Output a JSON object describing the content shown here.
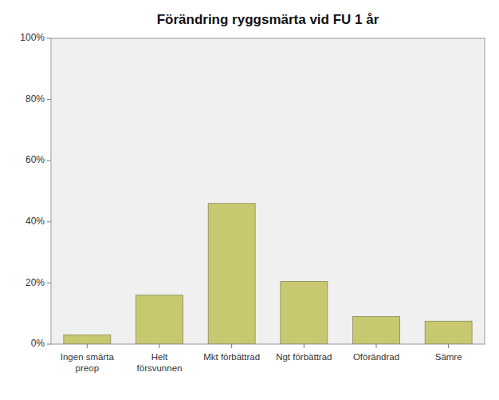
{
  "chart_data": {
    "type": "bar",
    "title": "Förändring ryggsmärta vid FU 1 år",
    "categories": [
      "Ingen smärta\npreop",
      "Helt\nförsvunnen",
      "Mkt förbättrad",
      "Ngt förbättrad",
      "Oförändrad",
      "Sämre"
    ],
    "values": [
      3.0,
      16.0,
      46.0,
      20.5,
      9.0,
      7.5
    ],
    "color": "#c8c870",
    "ylim": [
      0,
      100
    ],
    "yticks": [
      {
        "value": 0,
        "label": "0%"
      },
      {
        "value": 20,
        "label": "20%"
      },
      {
        "value": 40,
        "label": "40%"
      },
      {
        "value": 60,
        "label": "60%"
      },
      {
        "value": 80,
        "label": "80%"
      },
      {
        "value": 100,
        "label": "100%"
      }
    ],
    "grid": false
  }
}
